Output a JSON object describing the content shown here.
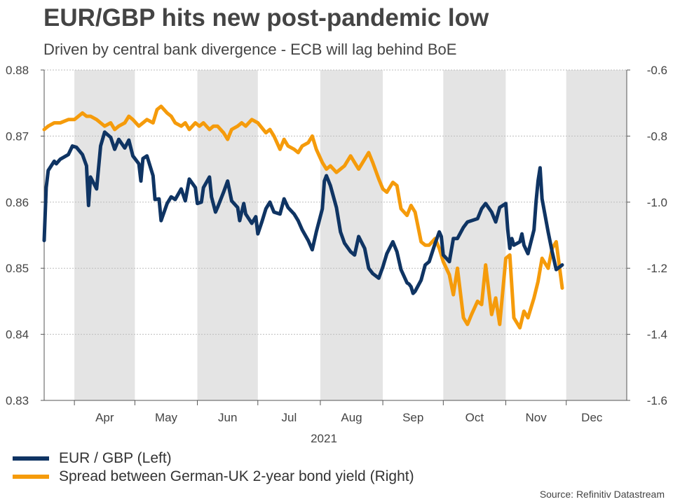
{
  "title": "EUR/GBP hits new post-pandemic low",
  "subtitle": "Driven by central bank divergence - ECB will lag behind BoE",
  "source": "Source: Refinitiv Datastream",
  "colors": {
    "eur_gbp": "#0f3463",
    "spread": "#f59b0b",
    "band": "#e4e4e4",
    "grid": "#bdbdbd"
  },
  "legend": [
    {
      "label": "EUR / GBP (Left)",
      "color": "#0f3463"
    },
    {
      "label": "Spread between German-UK 2-year bond yield (Right)",
      "color": "#f59b0b"
    }
  ],
  "chart_data": {
    "type": "line",
    "year_label": "2021",
    "x_axis": {
      "type": "date",
      "range": [
        "2021-03-17",
        "2021-12-31"
      ],
      "month_ticks": [
        "Apr",
        "May",
        "Jun",
        "Jul",
        "Aug",
        "Sep",
        "Oct",
        "Nov",
        "Dec"
      ]
    },
    "y_left": {
      "ylim": [
        0.83,
        0.88
      ],
      "ticks": [
        "0.83",
        "0.84",
        "0.85",
        "0.86",
        "0.87",
        "0.88"
      ]
    },
    "y_right": {
      "ylim": [
        -1.6,
        -0.6
      ],
      "ticks": [
        "-1.6",
        "-1.4",
        "-1.2",
        "-1.0",
        "-0.8",
        "-0.6"
      ]
    },
    "grid": true,
    "shaded_months": [
      "Apr",
      "Jun",
      "Aug",
      "Oct",
      "Dec"
    ],
    "series": [
      {
        "name": "EUR / GBP (Left)",
        "axis": "left",
        "points": [
          [
            "2021-03-17",
            0.8542
          ],
          [
            "2021-03-18",
            0.8622
          ],
          [
            "2021-03-19",
            0.8648
          ],
          [
            "2021-03-22",
            0.8662
          ],
          [
            "2021-03-23",
            0.8658
          ],
          [
            "2021-03-25",
            0.8665
          ],
          [
            "2021-03-29",
            0.8672
          ],
          [
            "2021-03-31",
            0.8685
          ],
          [
            "2021-04-02",
            0.8683
          ],
          [
            "2021-04-05",
            0.8672
          ],
          [
            "2021-04-07",
            0.8655
          ],
          [
            "2021-04-08",
            0.8595
          ],
          [
            "2021-04-09",
            0.8638
          ],
          [
            "2021-04-12",
            0.862
          ],
          [
            "2021-04-14",
            0.8685
          ],
          [
            "2021-04-16",
            0.8706
          ],
          [
            "2021-04-19",
            0.8698
          ],
          [
            "2021-04-21",
            0.868
          ],
          [
            "2021-04-23",
            0.8695
          ],
          [
            "2021-04-26",
            0.8682
          ],
          [
            "2021-04-28",
            0.8694
          ],
          [
            "2021-04-30",
            0.867
          ],
          [
            "2021-05-03",
            0.8658
          ],
          [
            "2021-05-04",
            0.8632
          ],
          [
            "2021-05-05",
            0.8666
          ],
          [
            "2021-05-07",
            0.867
          ],
          [
            "2021-05-10",
            0.864
          ],
          [
            "2021-05-11",
            0.8604
          ],
          [
            "2021-05-13",
            0.8605
          ],
          [
            "2021-05-14",
            0.8572
          ],
          [
            "2021-05-17",
            0.8598
          ],
          [
            "2021-05-19",
            0.8608
          ],
          [
            "2021-05-21",
            0.8604
          ],
          [
            "2021-05-24",
            0.862
          ],
          [
            "2021-05-26",
            0.8602
          ],
          [
            "2021-05-28",
            0.8635
          ],
          [
            "2021-05-31",
            0.8622
          ],
          [
            "2021-06-01",
            0.8598
          ],
          [
            "2021-06-03",
            0.86
          ],
          [
            "2021-06-04",
            0.8622
          ],
          [
            "2021-06-07",
            0.8638
          ],
          [
            "2021-06-08",
            0.8608
          ],
          [
            "2021-06-10",
            0.8585
          ],
          [
            "2021-06-11",
            0.8592
          ],
          [
            "2021-06-14",
            0.8615
          ],
          [
            "2021-06-16",
            0.8632
          ],
          [
            "2021-06-18",
            0.8602
          ],
          [
            "2021-06-21",
            0.8592
          ],
          [
            "2021-06-22",
            0.8572
          ],
          [
            "2021-06-24",
            0.8598
          ],
          [
            "2021-06-25",
            0.8582
          ],
          [
            "2021-06-28",
            0.8568
          ],
          [
            "2021-06-30",
            0.8578
          ],
          [
            "2021-07-01",
            0.8552
          ],
          [
            "2021-07-03",
            0.857
          ],
          [
            "2021-07-05",
            0.859
          ],
          [
            "2021-07-07",
            0.86
          ],
          [
            "2021-07-09",
            0.8585
          ],
          [
            "2021-07-12",
            0.8582
          ],
          [
            "2021-07-14",
            0.8605
          ],
          [
            "2021-07-16",
            0.8592
          ],
          [
            "2021-07-19",
            0.8582
          ],
          [
            "2021-07-21",
            0.8572
          ],
          [
            "2021-07-23",
            0.8558
          ],
          [
            "2021-07-26",
            0.8542
          ],
          [
            "2021-07-28",
            0.8528
          ],
          [
            "2021-07-30",
            0.8555
          ],
          [
            "2021-08-02",
            0.859
          ],
          [
            "2021-08-03",
            0.8632
          ],
          [
            "2021-08-04",
            0.864
          ],
          [
            "2021-08-06",
            0.8625
          ],
          [
            "2021-08-09",
            0.8592
          ],
          [
            "2021-08-11",
            0.8555
          ],
          [
            "2021-08-13",
            0.8538
          ],
          [
            "2021-08-16",
            0.8525
          ],
          [
            "2021-08-18",
            0.852
          ],
          [
            "2021-08-20",
            0.8548
          ],
          [
            "2021-08-23",
            0.853
          ],
          [
            "2021-08-25",
            0.85
          ],
          [
            "2021-08-27",
            0.8492
          ],
          [
            "2021-08-30",
            0.8485
          ],
          [
            "2021-09-01",
            0.8502
          ],
          [
            "2021-09-03",
            0.8522
          ],
          [
            "2021-09-06",
            0.854
          ],
          [
            "2021-09-08",
            0.8525
          ],
          [
            "2021-09-10",
            0.8498
          ],
          [
            "2021-09-13",
            0.8478
          ],
          [
            "2021-09-14",
            0.8476
          ],
          [
            "2021-09-15",
            0.8472
          ],
          [
            "2021-09-16",
            0.8462
          ],
          [
            "2021-09-17",
            0.8465
          ],
          [
            "2021-09-20",
            0.8482
          ],
          [
            "2021-09-22",
            0.8505
          ],
          [
            "2021-09-24",
            0.851
          ],
          [
            "2021-09-27",
            0.8538
          ],
          [
            "2021-09-29",
            0.8555
          ],
          [
            "2021-09-30",
            0.8548
          ],
          [
            "2021-10-01",
            0.852
          ],
          [
            "2021-10-04",
            0.851
          ],
          [
            "2021-10-06",
            0.8545
          ],
          [
            "2021-10-08",
            0.8545
          ],
          [
            "2021-10-11",
            0.8562
          ],
          [
            "2021-10-13",
            0.857
          ],
          [
            "2021-10-15",
            0.8572
          ],
          [
            "2021-10-18",
            0.8575
          ],
          [
            "2021-10-20",
            0.859
          ],
          [
            "2021-10-22",
            0.8598
          ],
          [
            "2021-10-25",
            0.8585
          ],
          [
            "2021-10-27",
            0.857
          ],
          [
            "2021-10-29",
            0.8592
          ],
          [
            "2021-11-01",
            0.8598
          ],
          [
            "2021-11-02",
            0.8558
          ],
          [
            "2021-11-03",
            0.853
          ],
          [
            "2021-11-04",
            0.8545
          ],
          [
            "2021-11-05",
            0.8535
          ],
          [
            "2021-11-08",
            0.854
          ],
          [
            "2021-11-09",
            0.8552
          ],
          [
            "2021-11-10",
            0.8535
          ],
          [
            "2021-11-12",
            0.8522
          ],
          [
            "2021-11-15",
            0.8558
          ],
          [
            "2021-11-16",
            0.86
          ],
          [
            "2021-11-17",
            0.8632
          ],
          [
            "2021-11-18",
            0.8652
          ],
          [
            "2021-11-19",
            0.8605
          ],
          [
            "2021-11-22",
            0.8555
          ],
          [
            "2021-11-24",
            0.8525
          ],
          [
            "2021-11-26",
            0.8498
          ],
          [
            "2021-11-29",
            0.8505
          ]
        ]
      },
      {
        "name": "Spread between German-UK 2-year bond yield (Right)",
        "axis": "right",
        "points": [
          [
            "2021-03-17",
            -0.78
          ],
          [
            "2021-03-19",
            -0.77
          ],
          [
            "2021-03-22",
            -0.76
          ],
          [
            "2021-03-25",
            -0.76
          ],
          [
            "2021-03-29",
            -0.75
          ],
          [
            "2021-04-01",
            -0.75
          ],
          [
            "2021-04-05",
            -0.73
          ],
          [
            "2021-04-07",
            -0.74
          ],
          [
            "2021-04-09",
            -0.74
          ],
          [
            "2021-04-12",
            -0.75
          ],
          [
            "2021-04-14",
            -0.76
          ],
          [
            "2021-04-16",
            -0.77
          ],
          [
            "2021-04-19",
            -0.76
          ],
          [
            "2021-04-21",
            -0.78
          ],
          [
            "2021-04-23",
            -0.77
          ],
          [
            "2021-04-26",
            -0.76
          ],
          [
            "2021-04-28",
            -0.74
          ],
          [
            "2021-04-30",
            -0.75
          ],
          [
            "2021-05-03",
            -0.77
          ],
          [
            "2021-05-05",
            -0.76
          ],
          [
            "2021-05-07",
            -0.75
          ],
          [
            "2021-05-10",
            -0.76
          ],
          [
            "2021-05-12",
            -0.72
          ],
          [
            "2021-05-14",
            -0.71
          ],
          [
            "2021-05-17",
            -0.73
          ],
          [
            "2021-05-19",
            -0.74
          ],
          [
            "2021-05-21",
            -0.76
          ],
          [
            "2021-05-24",
            -0.77
          ],
          [
            "2021-05-26",
            -0.76
          ],
          [
            "2021-05-28",
            -0.78
          ],
          [
            "2021-05-31",
            -0.76
          ],
          [
            "2021-06-02",
            -0.77
          ],
          [
            "2021-06-04",
            -0.76
          ],
          [
            "2021-06-07",
            -0.78
          ],
          [
            "2021-06-09",
            -0.77
          ],
          [
            "2021-06-11",
            -0.77
          ],
          [
            "2021-06-14",
            -0.79
          ],
          [
            "2021-06-16",
            -0.81
          ],
          [
            "2021-06-18",
            -0.78
          ],
          [
            "2021-06-21",
            -0.77
          ],
          [
            "2021-06-23",
            -0.76
          ],
          [
            "2021-06-25",
            -0.77
          ],
          [
            "2021-06-28",
            -0.75
          ],
          [
            "2021-07-01",
            -0.76
          ],
          [
            "2021-07-05",
            -0.79
          ],
          [
            "2021-07-07",
            -0.78
          ],
          [
            "2021-07-09",
            -0.8
          ],
          [
            "2021-07-12",
            -0.84
          ],
          [
            "2021-07-14",
            -0.81
          ],
          [
            "2021-07-16",
            -0.83
          ],
          [
            "2021-07-19",
            -0.84
          ],
          [
            "2021-07-21",
            -0.85
          ],
          [
            "2021-07-23",
            -0.83
          ],
          [
            "2021-07-26",
            -0.82
          ],
          [
            "2021-07-28",
            -0.8
          ],
          [
            "2021-07-30",
            -0.84
          ],
          [
            "2021-08-02",
            -0.88
          ],
          [
            "2021-08-04",
            -0.9
          ],
          [
            "2021-08-06",
            -0.89
          ],
          [
            "2021-08-09",
            -0.91
          ],
          [
            "2021-08-11",
            -0.9
          ],
          [
            "2021-08-13",
            -0.89
          ],
          [
            "2021-08-16",
            -0.86
          ],
          [
            "2021-08-18",
            -0.88
          ],
          [
            "2021-08-20",
            -0.9
          ],
          [
            "2021-08-23",
            -0.87
          ],
          [
            "2021-08-25",
            -0.85
          ],
          [
            "2021-08-27",
            -0.88
          ],
          [
            "2021-08-30",
            -0.93
          ],
          [
            "2021-09-01",
            -0.96
          ],
          [
            "2021-09-03",
            -0.97
          ],
          [
            "2021-09-06",
            -0.94
          ],
          [
            "2021-09-08",
            -0.95
          ],
          [
            "2021-09-10",
            -1.02
          ],
          [
            "2021-09-13",
            -1.04
          ],
          [
            "2021-09-15",
            -1.01
          ],
          [
            "2021-09-17",
            -1.03
          ],
          [
            "2021-09-20",
            -1.12
          ],
          [
            "2021-09-22",
            -1.13
          ],
          [
            "2021-09-24",
            -1.13
          ],
          [
            "2021-09-27",
            -1.11
          ],
          [
            "2021-09-29",
            -1.14
          ],
          [
            "2021-10-01",
            -1.18
          ],
          [
            "2021-10-04",
            -1.22
          ],
          [
            "2021-10-06",
            -1.28
          ],
          [
            "2021-10-08",
            -1.2
          ],
          [
            "2021-10-11",
            -1.35
          ],
          [
            "2021-10-13",
            -1.37
          ],
          [
            "2021-10-15",
            -1.34
          ],
          [
            "2021-10-18",
            -1.3
          ],
          [
            "2021-10-20",
            -1.31
          ],
          [
            "2021-10-22",
            -1.19
          ],
          [
            "2021-10-25",
            -1.34
          ],
          [
            "2021-10-27",
            -1.29
          ],
          [
            "2021-10-29",
            -1.37
          ],
          [
            "2021-11-01",
            -1.17
          ],
          [
            "2021-11-03",
            -1.16
          ],
          [
            "2021-11-05",
            -1.35
          ],
          [
            "2021-11-08",
            -1.38
          ],
          [
            "2021-11-10",
            -1.33
          ],
          [
            "2021-11-12",
            -1.35
          ],
          [
            "2021-11-15",
            -1.29
          ],
          [
            "2021-11-17",
            -1.24
          ],
          [
            "2021-11-19",
            -1.17
          ],
          [
            "2021-11-22",
            -1.2
          ],
          [
            "2021-11-24",
            -1.14
          ],
          [
            "2021-11-26",
            -1.12
          ],
          [
            "2021-11-29",
            -1.26
          ]
        ]
      }
    ]
  }
}
